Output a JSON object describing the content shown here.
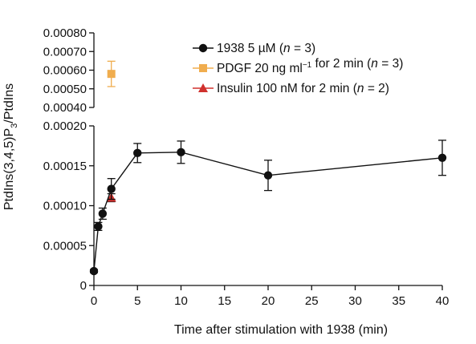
{
  "chart_data": {
    "type": "scatter",
    "xlabel": "Time after stimulation with 1938 (min)",
    "ylabel": "PtdIns(3,4,5)P3/PtdIns",
    "ylabel_parts": {
      "main": "PtdIns(3,4,5)P",
      "sub": "3",
      "rest": "/PtdIns"
    },
    "x_ticks": [
      0,
      5,
      10,
      15,
      20,
      25,
      30,
      35,
      40
    ],
    "xlim": [
      0,
      40
    ],
    "y_axes": [
      {
        "name": "lower",
        "ylim": [
          0,
          0.0002
        ],
        "ticks": [
          "0",
          "0.00005",
          "0.00010",
          "0.00015",
          "0.00020"
        ],
        "tick_values": [
          0,
          5e-05,
          0.0001,
          0.00015,
          0.0002
        ]
      },
      {
        "name": "upper",
        "ylim": [
          0.0004,
          0.0008
        ],
        "ticks": [
          "0.00040",
          "0.00050",
          "0.00060",
          "0.00070",
          "0.00080"
        ],
        "tick_values": [
          0.0004,
          0.0005,
          0.0006,
          0.0007,
          0.0008
        ]
      }
    ],
    "series": [
      {
        "name": "1938 5 µM (n = 3)",
        "color": "#111111",
        "marker": "circle",
        "line": true,
        "x": [
          0,
          0.5,
          1,
          2,
          5,
          10,
          20,
          40
        ],
        "y": [
          1.8e-05,
          7.4e-05,
          9e-05,
          0.000121,
          0.000166,
          0.000167,
          0.000138,
          0.00016
        ],
        "err": [
          2e-06,
          5e-06,
          7e-06,
          1.3e-05,
          1.2e-05,
          1.4e-05,
          1.9e-05,
          2.2e-05
        ]
      },
      {
        "name": "PDGF 20 ng ml−1 for 2 min (n = 3)",
        "color": "#f0ad4e",
        "marker": "square",
        "line": false,
        "x": [
          2
        ],
        "y": [
          0.00058
        ],
        "err": [
          6.8e-05
        ],
        "axis": "upper"
      },
      {
        "name": "Insulin 100 nM for 2 min (n = 2)",
        "color": "#d0312d",
        "marker": "triangle",
        "line": false,
        "x": [
          2
        ],
        "y": [
          0.00011
        ],
        "err": [
          5e-06
        ]
      }
    ],
    "legend": {
      "placement": "top-right",
      "entries": [
        {
          "parts": [
            "1938 5 ",
            "µ",
            "M (",
            "n",
            " = 3)"
          ],
          "italic_idx": [
            3
          ]
        },
        {
          "parts": [
            "PDGF 20 ng ml",
            "−1",
            " for 2 min (",
            "n",
            " = 3)"
          ],
          "italic_idx": [
            3
          ],
          "sup_idx": [
            1
          ]
        },
        {
          "parts": [
            "Insulin 100 nM for 2 min (",
            "n",
            " = 2)"
          ],
          "italic_idx": [
            1
          ]
        }
      ]
    }
  }
}
